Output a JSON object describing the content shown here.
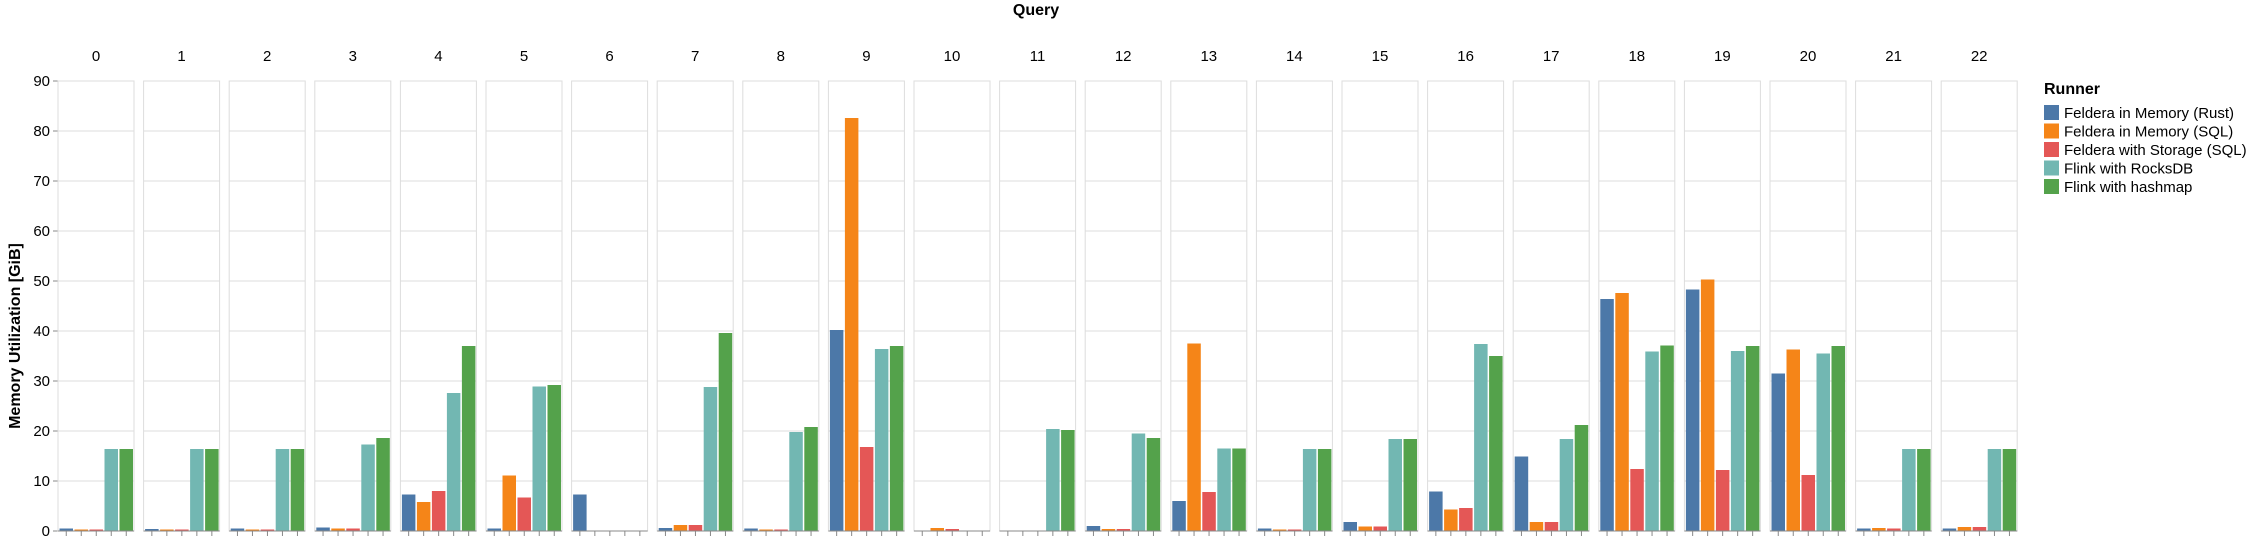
{
  "chart_data": {
    "type": "bar",
    "facet_title": "Query",
    "ylabel": "Memory Utilization [GiB]",
    "ylim": [
      0,
      90
    ],
    "yticks": [
      0,
      10,
      20,
      30,
      40,
      50,
      60,
      70,
      80,
      90
    ],
    "grid": true,
    "legend_title": "Runner",
    "legend_position": "right",
    "facets": [
      "0",
      "1",
      "2",
      "3",
      "4",
      "5",
      "6",
      "7",
      "8",
      "9",
      "10",
      "11",
      "12",
      "13",
      "14",
      "15",
      "16",
      "17",
      "18",
      "19",
      "20",
      "21",
      "22"
    ],
    "series": [
      {
        "name": "Feldera in Memory (Rust)",
        "color": "#4c78a8",
        "values": [
          0.5,
          0.4,
          0.5,
          0.7,
          7.3,
          0.5,
          7.3,
          0.6,
          0.5,
          40.2,
          0.0,
          0.0,
          1.0,
          6.0,
          0.5,
          1.8,
          7.9,
          14.9,
          46.4,
          48.3,
          31.5,
          0.5,
          0.5
        ]
      },
      {
        "name": "Feldera in Memory (SQL)",
        "color": "#f58518",
        "values": [
          0.3,
          0.3,
          0.3,
          0.5,
          5.8,
          11.1,
          0.0,
          1.2,
          0.3,
          82.6,
          0.6,
          0.0,
          0.4,
          37.5,
          0.3,
          0.9,
          4.3,
          1.8,
          47.6,
          50.3,
          36.3,
          0.6,
          0.8
        ]
      },
      {
        "name": "Feldera with Storage (SQL)",
        "color": "#e45756",
        "values": [
          0.3,
          0.3,
          0.3,
          0.5,
          8.0,
          6.7,
          0.0,
          1.2,
          0.3,
          16.8,
          0.4,
          0.0,
          0.4,
          7.8,
          0.3,
          0.9,
          4.6,
          1.8,
          12.4,
          12.2,
          11.2,
          0.5,
          0.8
        ]
      },
      {
        "name": "Flink with RocksDB",
        "color": "#72b7b2",
        "values": [
          16.4,
          16.4,
          16.4,
          17.3,
          27.6,
          28.9,
          0.0,
          28.8,
          19.8,
          36.4,
          0.0,
          20.4,
          19.5,
          16.5,
          16.4,
          18.4,
          37.4,
          18.4,
          35.9,
          36.0,
          35.5,
          16.4,
          16.4
        ]
      },
      {
        "name": "Flink with hashmap",
        "color": "#54a24b",
        "values": [
          16.4,
          16.4,
          16.4,
          18.6,
          37.0,
          29.2,
          0.0,
          39.6,
          20.8,
          37.0,
          0.0,
          20.2,
          18.6,
          16.5,
          16.4,
          18.4,
          35.0,
          21.2,
          37.1,
          37.0,
          37.0,
          16.4,
          16.4
        ]
      }
    ]
  }
}
